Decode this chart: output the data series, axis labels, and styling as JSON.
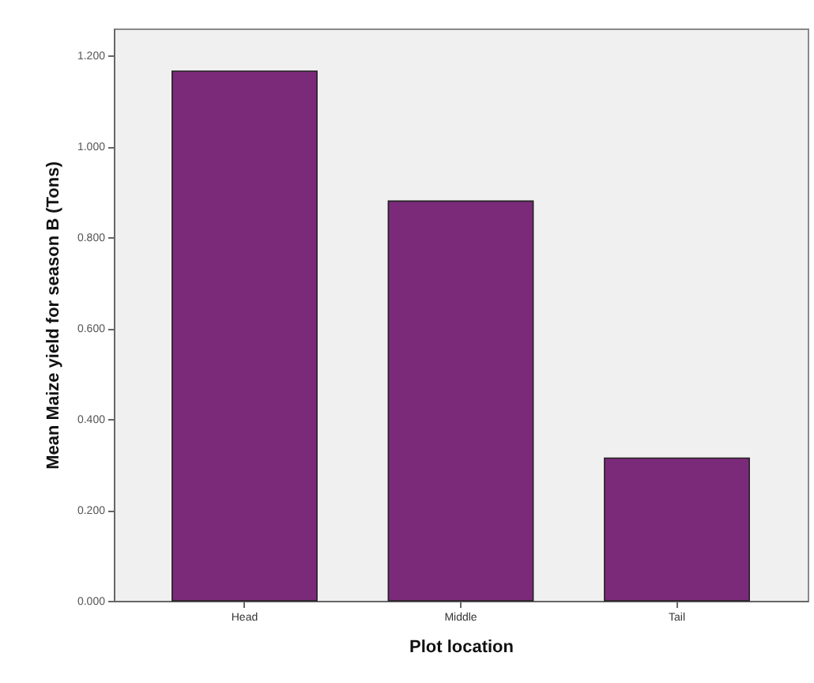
{
  "chart_data": {
    "type": "bar",
    "xlabel": "Plot location",
    "ylabel": "Mean Maize yield for season B (Tons)",
    "categories": [
      "Head",
      "Middle",
      "Tail"
    ],
    "values": [
      1.166,
      0.88,
      0.314
    ],
    "color": "#7b2a7a",
    "ylim": [
      0,
      1.26
    ],
    "yticks": [
      {
        "value": 0,
        "label": "0.000"
      },
      {
        "value": 0.2,
        "label": "0.200"
      },
      {
        "value": 0.4,
        "label": "0.400"
      },
      {
        "value": 0.6,
        "label": "0.600"
      },
      {
        "value": 0.8,
        "label": "0.800"
      },
      {
        "value": 1.0,
        "label": "1.000"
      },
      {
        "value": 1.2,
        "label": "1.200"
      }
    ],
    "grid": false
  }
}
